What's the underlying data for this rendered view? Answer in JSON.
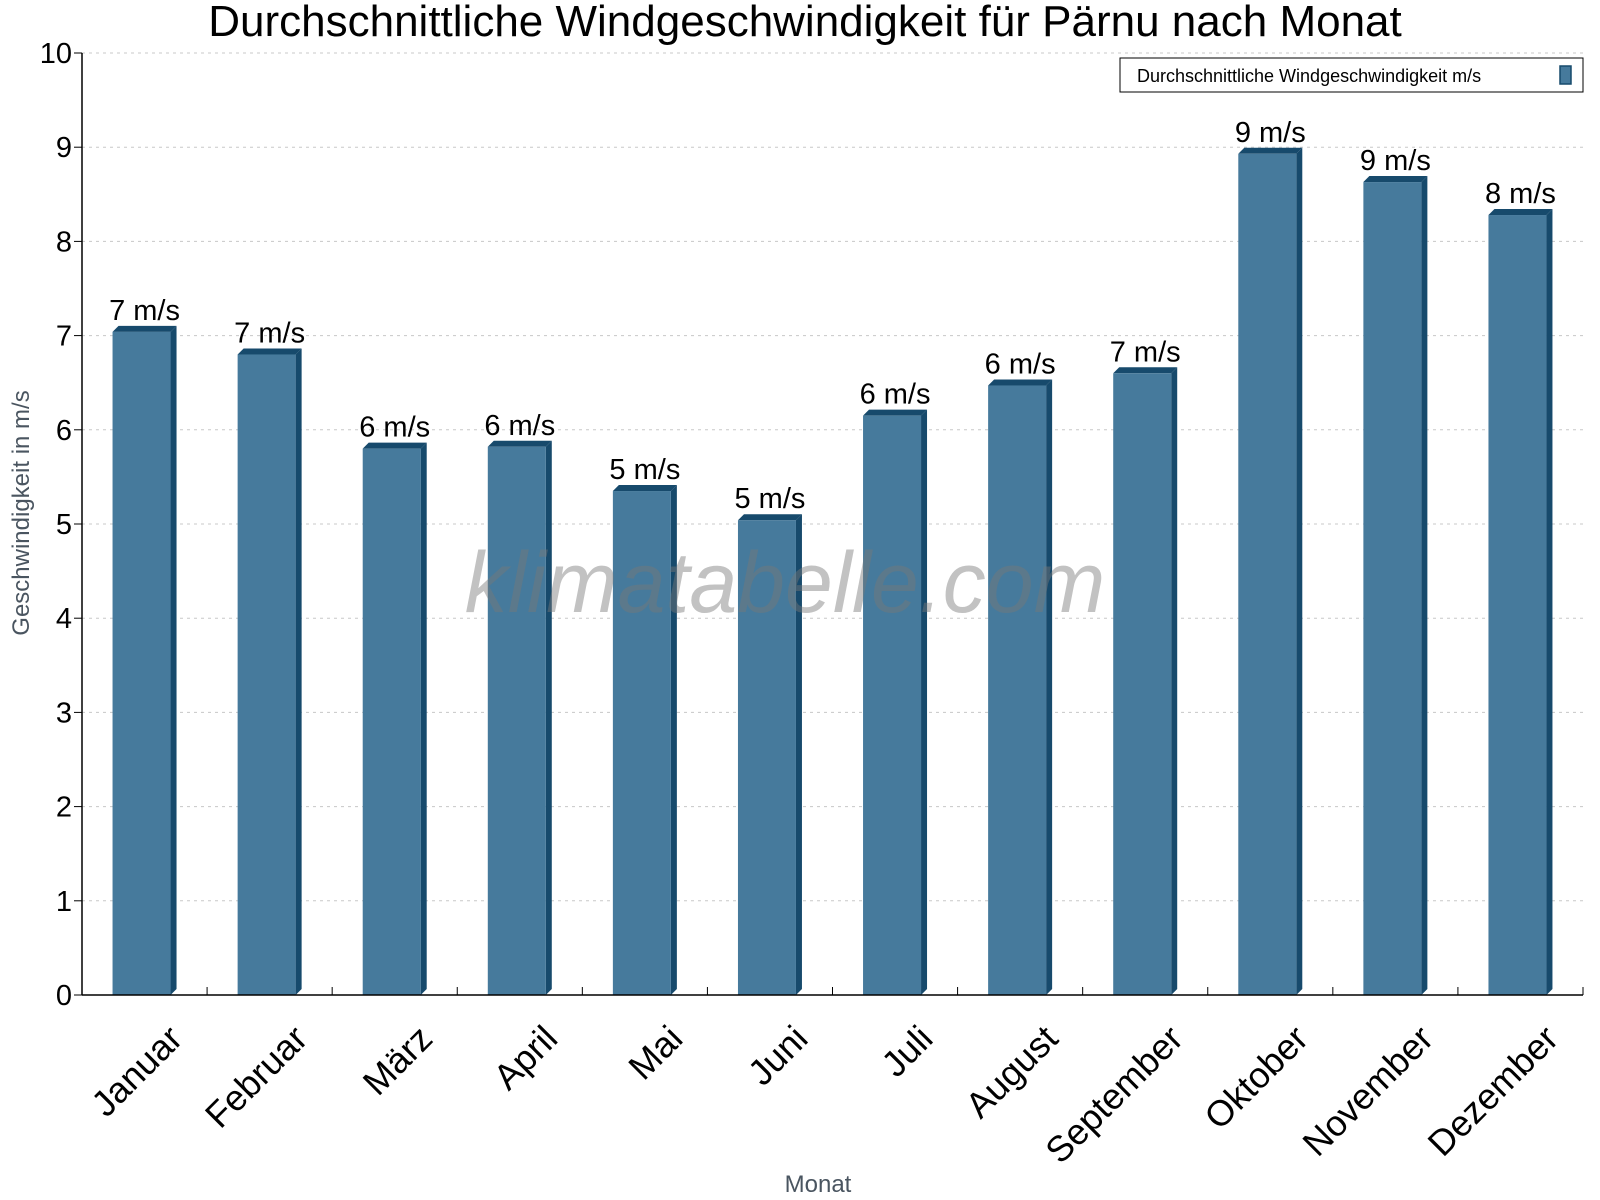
{
  "chart_data": {
    "type": "bar",
    "title": "Durchschnittliche Windgeschwindigkeit für Pärnu nach Monat",
    "xlabel": "Monat",
    "ylabel": "Geschwindigkeit in m/s",
    "ylim": [
      0,
      10
    ],
    "yticks": [
      0,
      1,
      2,
      3,
      4,
      5,
      6,
      7,
      8,
      9,
      10
    ],
    "grid": true,
    "legend_position": "top-right",
    "categories": [
      "Januar",
      "Februar",
      "März",
      "April",
      "Mai",
      "Juni",
      "Juli",
      "August",
      "September",
      "Oktober",
      "November",
      "Dezember"
    ],
    "series": [
      {
        "name": "Durchschnittliche Windgeschwindigkeit m/s",
        "color": "#467a9c",
        "side_color": "#174a6c",
        "values": [
          7.04,
          6.8,
          5.8,
          5.82,
          5.35,
          5.04,
          6.15,
          6.47,
          6.6,
          8.93,
          8.63,
          8.28
        ],
        "data_labels": [
          "7 m/s",
          "7 m/s",
          "6 m/s",
          "6 m/s",
          "5 m/s",
          "5 m/s",
          "6 m/s",
          "6 m/s",
          "7 m/s",
          "9 m/s",
          "9 m/s",
          "8 m/s"
        ]
      }
    ],
    "watermark": "klimatabelle.com"
  }
}
